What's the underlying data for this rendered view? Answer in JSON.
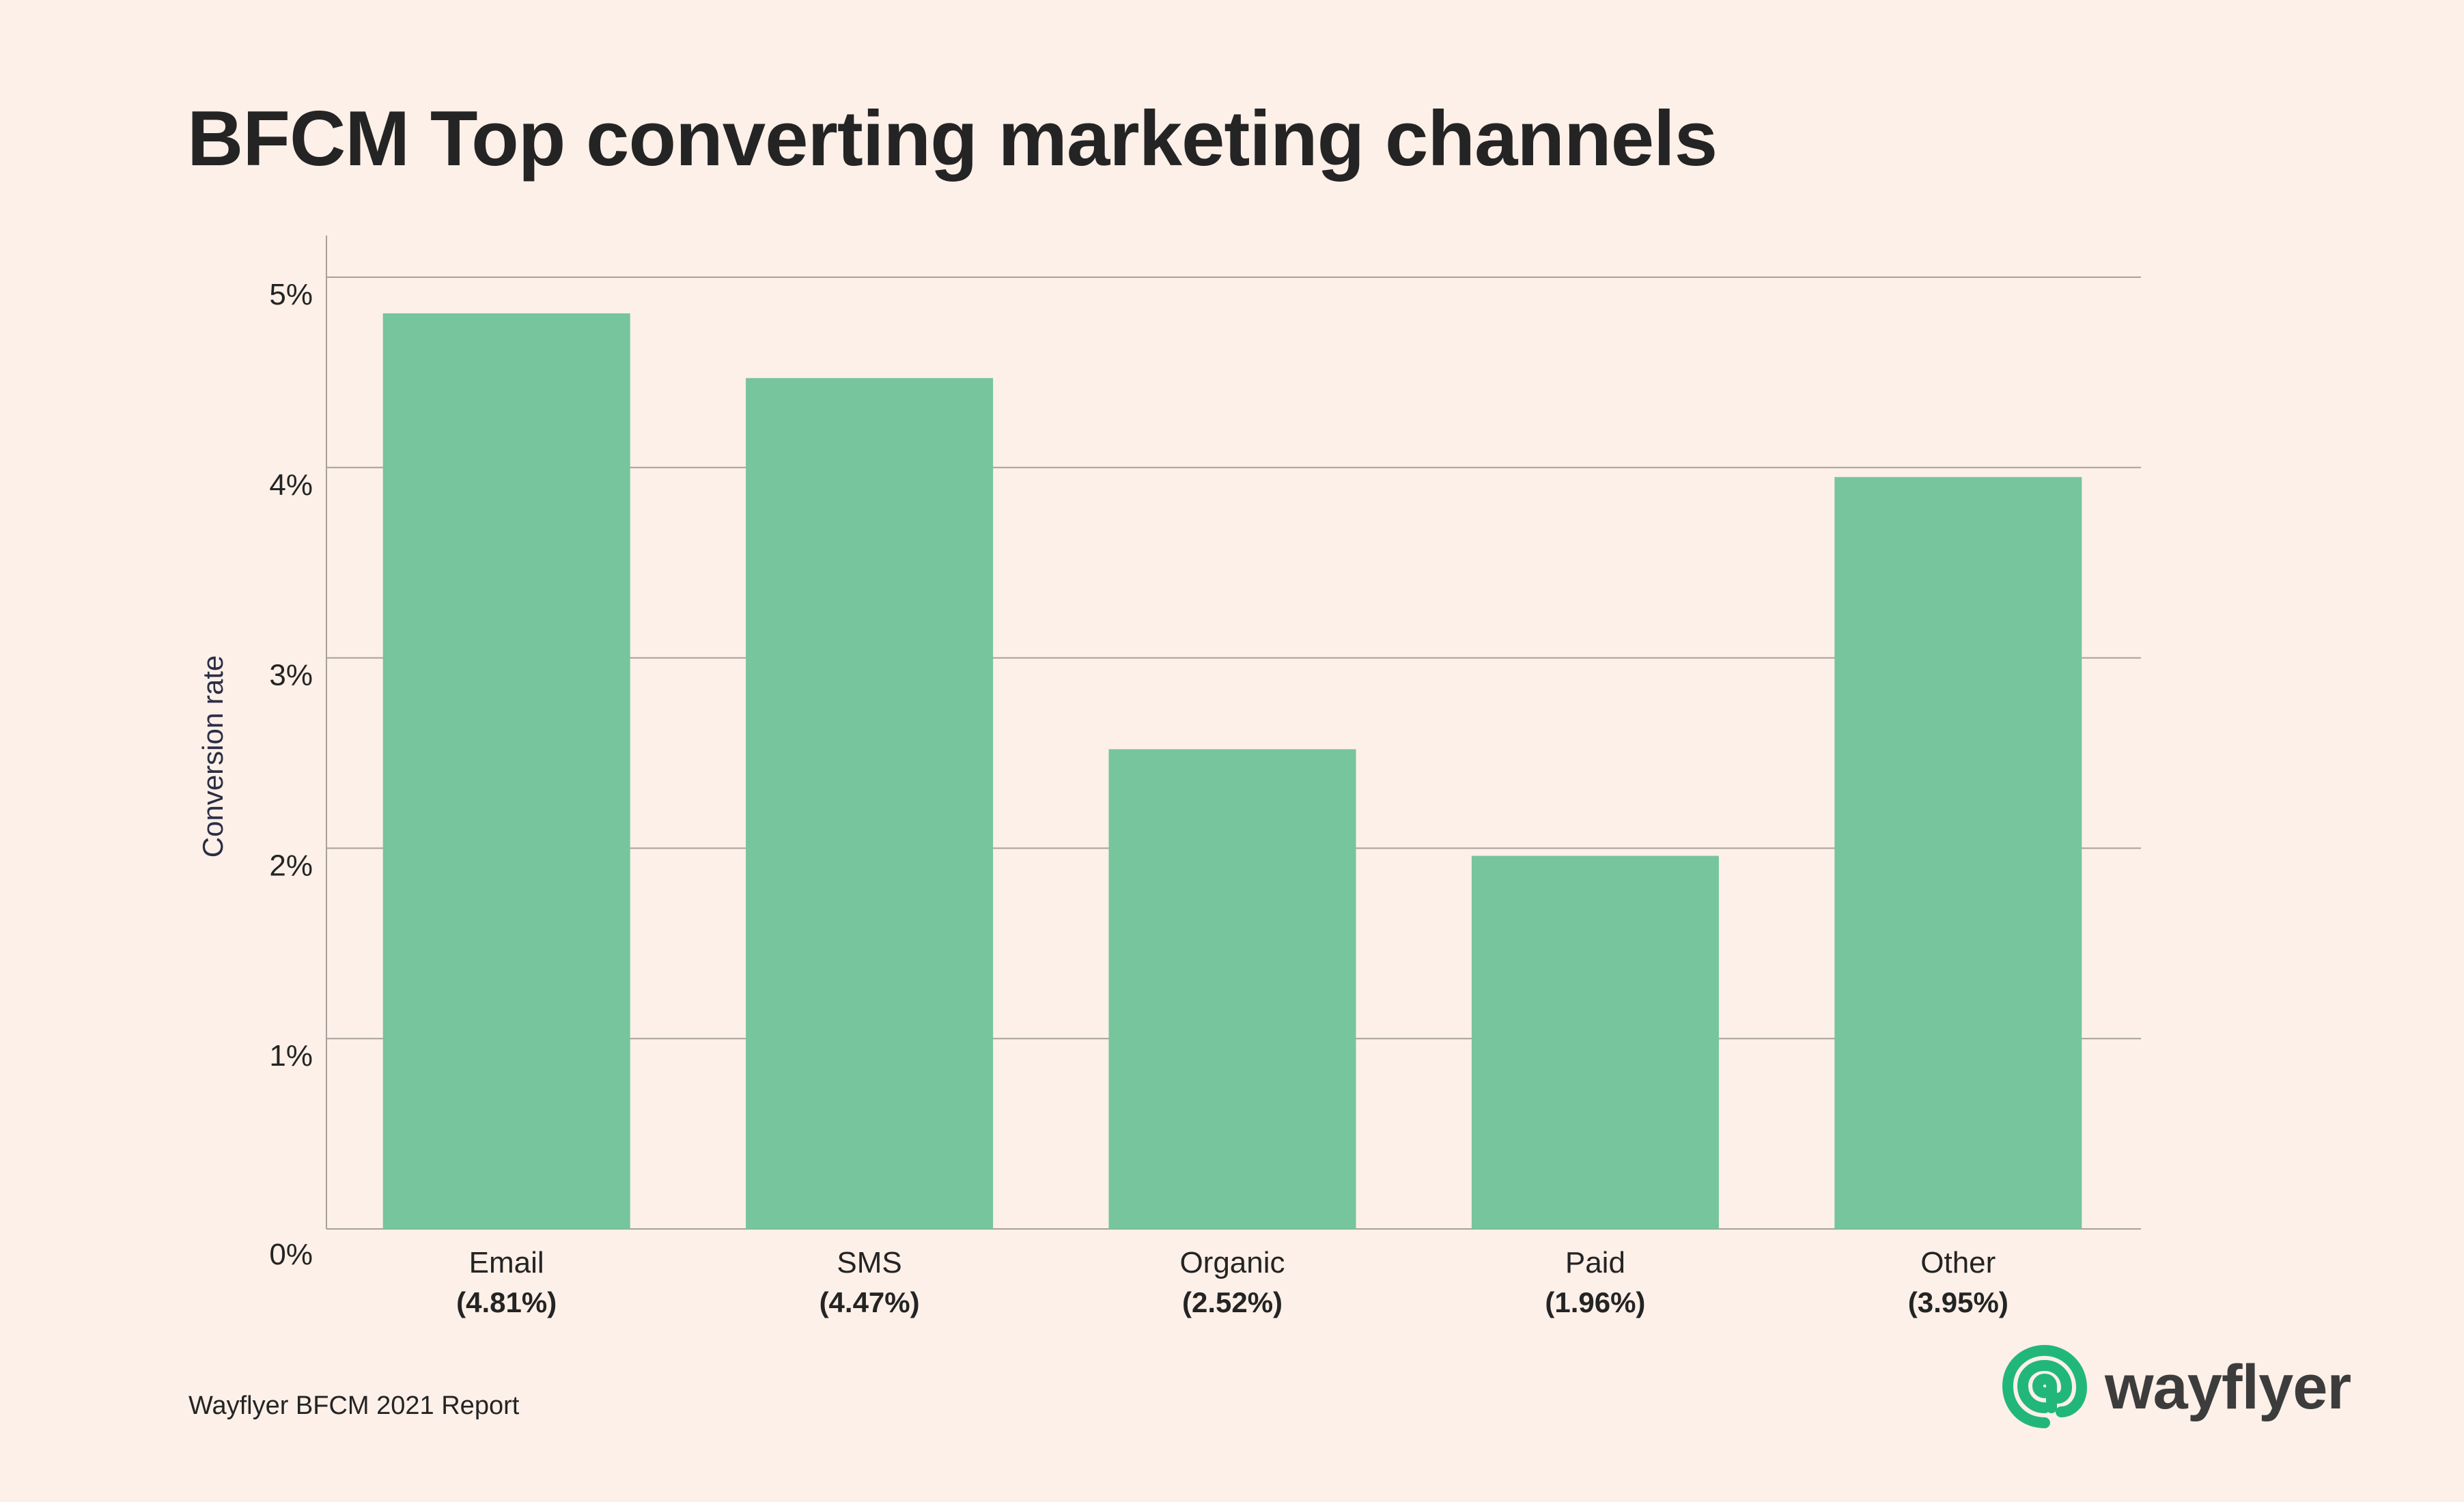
{
  "colors": {
    "background": "#fcf0e8",
    "bar": "#76c59c",
    "grid": "#a8a09a",
    "text": "#242424",
    "brand": "#22b77a"
  },
  "footer": "Wayflyer BFCM 2021 Report",
  "logo": {
    "text": "wayflyer",
    "icon": "wayflyer-swirl-icon"
  },
  "chart_data": {
    "type": "bar",
    "title": "BFCM Top converting marketing channels",
    "xlabel": "",
    "ylabel": "Conversion rate",
    "ylim": [
      0,
      5
    ],
    "y_ticks": [
      "0%",
      "1%",
      "2%",
      "3%",
      "4%",
      "5%"
    ],
    "categories": [
      "Email",
      "SMS",
      "Organic",
      "Paid",
      "Other"
    ],
    "value_labels": [
      "(4.81%)",
      "(4.47%)",
      "(2.52%)",
      "(1.96%)",
      "(3.95%)"
    ],
    "values": [
      4.81,
      4.47,
      2.52,
      1.96,
      3.95
    ],
    "grid": true,
    "legend": "none"
  }
}
